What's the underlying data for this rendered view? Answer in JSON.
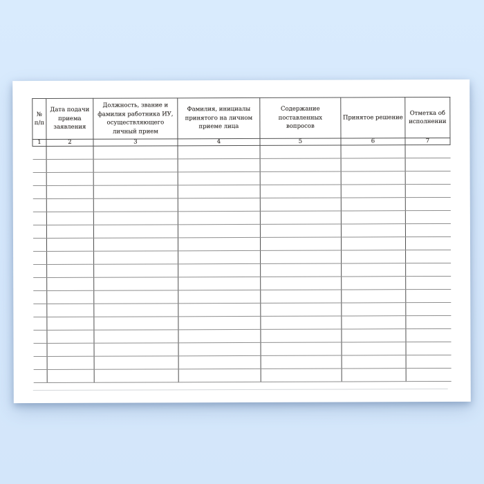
{
  "document": {
    "kind": "blank-journal-register-form",
    "table": {
      "columns": [
        {
          "num": "1",
          "header": "№\nп/п"
        },
        {
          "num": "2",
          "header": "Дата подачи\nприема\nзаявления"
        },
        {
          "num": "3",
          "header": "Должность, звание и\nфамилия работника ИУ,\nосуществляющего\nличный прием"
        },
        {
          "num": "4",
          "header": "Фамилия, инициалы\nпринятого на личном\nприеме лица"
        },
        {
          "num": "5",
          "header": "Содержание поставленных\nвопросов"
        },
        {
          "num": "6",
          "header": "Принятое решение"
        },
        {
          "num": "7",
          "header": "Отметка об\nисполнении"
        }
      ],
      "body_row_count": 18
    }
  },
  "colors": {
    "background": "#d6e8fc",
    "page": "#ffffff",
    "grid_vertical": "#4d4d4d",
    "grid_horizontal": "#8e8e8e",
    "text": "#2f2b28"
  }
}
